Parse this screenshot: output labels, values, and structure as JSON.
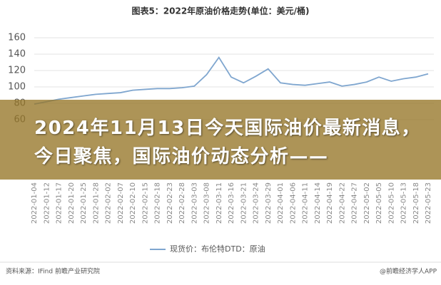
{
  "chart_data": {
    "type": "line",
    "title": "图表5：2022年原油价格走势(单位：美元/桶)",
    "categories": [
      "2022-01-04",
      "2022-01-12",
      "2022-01-17",
      "2022-01-20",
      "2022-01-25",
      "2022-01-28",
      "2022-02-02",
      "2022-02-07",
      "2022-02-10",
      "2022-02-15",
      "2022-02-18",
      "2022-02-23",
      "2022-02-28",
      "2022-03-03",
      "2022-03-08",
      "2022-03-11",
      "2022-03-16",
      "2022-03-21",
      "2022-03-24",
      "2022-03-29",
      "2022-04-01",
      "2022-04-06",
      "2022-04-11",
      "2022-04-14",
      "2022-04-19",
      "2022-04-22",
      "2022-04-27",
      "2022-05-02",
      "2022-05-05",
      "2022-05-10",
      "2022-05-13",
      "2022-05-18",
      "2022-05-23"
    ],
    "series": [
      {
        "name": "现货价：布伦特DTD：原油",
        "color": "#7fa6cf",
        "values": [
          79,
          82,
          85,
          87,
          89,
          91,
          92,
          93,
          96,
          97,
          98,
          98,
          99,
          101,
          115,
          136,
          112,
          105,
          113,
          122,
          105,
          103,
          102,
          104,
          106,
          101,
          103,
          106,
          112,
          107,
          110,
          112,
          116
        ]
      }
    ],
    "ylim": [
      60,
      160
    ],
    "yticks": [
      60,
      80,
      100,
      120,
      140,
      160
    ],
    "grid": true,
    "source": "资料来源：IFind 前瞻产业研究院",
    "credit": "@前瞻经济学人APP"
  },
  "headline": "2024年11月13日今天国际油价最新消息，今日聚焦，国际油价动态分析——"
}
